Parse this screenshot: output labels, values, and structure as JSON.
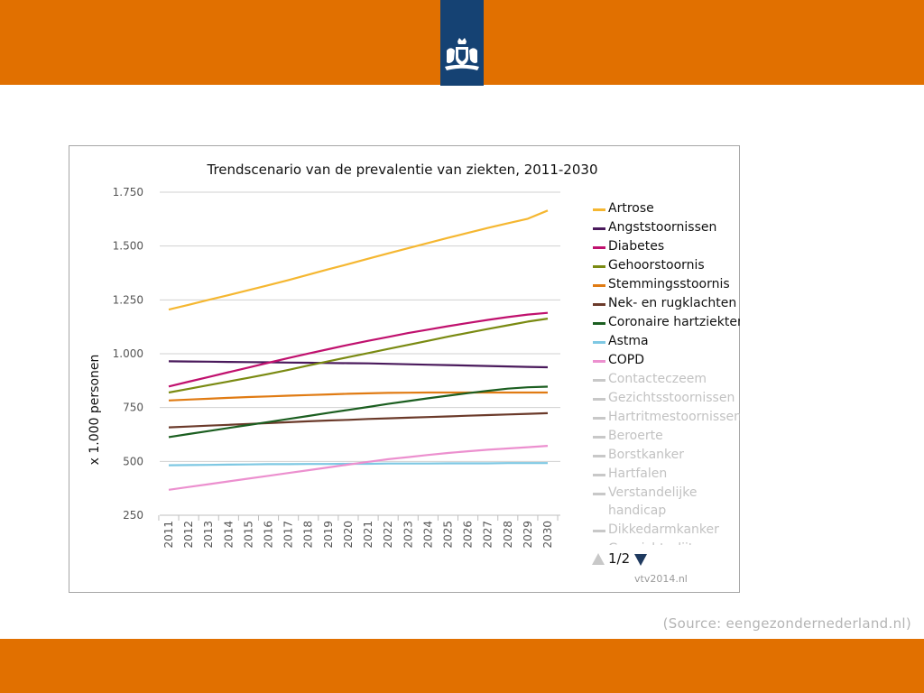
{
  "header": {
    "emblem_icon": "royal-coat-of-arms-icon"
  },
  "source_text": "(Source: eengezondernederland.nl)",
  "legend_nav": {
    "page": "1/2",
    "up_icon": "triangle-up-icon",
    "down_icon": "triangle-down-icon"
  },
  "credit": "vtv2014.nl",
  "colors": {
    "brand_orange": "#e17000",
    "brand_blue": "#154273"
  },
  "chart_data": {
    "type": "line",
    "title": "Trendscenario van de prevalentie van ziekten, 2011-2030",
    "xlabel": "",
    "ylabel": "x 1.000 personen",
    "ylim": [
      250,
      1750
    ],
    "yticks": [
      250,
      500,
      750,
      1000,
      1250,
      1500,
      1750
    ],
    "ytick_labels": [
      "250",
      "500",
      "750",
      "1.000",
      "1.250",
      "1.500",
      "1.750"
    ],
    "x": [
      "2011",
      "2012",
      "2013",
      "2014",
      "2015",
      "2016",
      "2017",
      "2018",
      "2019",
      "2020",
      "2021",
      "2022",
      "2023",
      "2024",
      "2025",
      "2026",
      "2027",
      "2028",
      "2029",
      "2030"
    ],
    "grid": true,
    "legend_position": "right",
    "series": [
      {
        "name": "Artrose",
        "color": "#f5b731",
        "values": [
          1205,
          1227,
          1250,
          1272,
          1295,
          1318,
          1342,
          1367,
          1392,
          1416,
          1441,
          1466,
          1490,
          1514,
          1538,
          1561,
          1584,
          1606,
          1627,
          1665
        ]
      },
      {
        "name": "Angststoornissen",
        "color": "#4a1a5c",
        "values": [
          965,
          964,
          963,
          962,
          961,
          960,
          959,
          958,
          957,
          956,
          955,
          953,
          951,
          949,
          947,
          945,
          943,
          941,
          939,
          937
        ]
      },
      {
        "name": "Diabetes",
        "color": "#c0116e",
        "values": [
          848,
          870,
          892,
          914,
          936,
          958,
          980,
          1001,
          1021,
          1041,
          1060,
          1078,
          1096,
          1112,
          1128,
          1143,
          1157,
          1170,
          1182,
          1190
        ]
      },
      {
        "name": "Gehoorstoornis",
        "color": "#7a8a12",
        "values": [
          820,
          837,
          854,
          871,
          888,
          906,
          925,
          945,
          965,
          984,
          1003,
          1022,
          1041,
          1060,
          1079,
          1097,
          1115,
          1132,
          1149,
          1163
        ]
      },
      {
        "name": "Stemmingsstoornis",
        "color": "#e07b13",
        "values": [
          783,
          787,
          791,
          795,
          799,
          802,
          805,
          808,
          811,
          814,
          816,
          818,
          819,
          820,
          820,
          820,
          820,
          820,
          820,
          820
        ]
      },
      {
        "name": "Nek- en rugklachten",
        "color": "#6b3a2a",
        "values": [
          658,
          662,
          666,
          670,
          674,
          678,
          682,
          686,
          690,
          693,
          697,
          700,
          703,
          706,
          709,
          712,
          715,
          718,
          721,
          724
        ]
      },
      {
        "name": "Coronaire hartziekten",
        "color": "#1b5e20",
        "values": [
          613,
          627,
          641,
          655,
          669,
          683,
          697,
          711,
          725,
          739,
          753,
          767,
          780,
          793,
          805,
          817,
          828,
          838,
          844,
          847
        ]
      },
      {
        "name": "Astma",
        "color": "#7ec8e3",
        "values": [
          482,
          483,
          484,
          485,
          486,
          487,
          487,
          488,
          488,
          489,
          489,
          490,
          490,
          490,
          491,
          491,
          491,
          492,
          492,
          492
        ]
      },
      {
        "name": "COPD",
        "color": "#ec90cf",
        "values": [
          368,
          381,
          394,
          407,
          420,
          433,
          446,
          459,
          472,
          485,
          498,
          510,
          520,
          530,
          539,
          547,
          554,
          560,
          566,
          572
        ]
      },
      {
        "name": "Contacteczeem",
        "color": "#c8c8c8",
        "visible": false
      },
      {
        "name": "Gezichtsstoornissen",
        "color": "#c8c8c8",
        "visible": false
      },
      {
        "name": "Hartritmestoornissen",
        "color": "#c8c8c8",
        "visible": false
      },
      {
        "name": "Beroerte",
        "color": "#c8c8c8",
        "visible": false
      },
      {
        "name": "Borstkanker",
        "color": "#c8c8c8",
        "visible": false
      },
      {
        "name": "Hartfalen",
        "color": "#c8c8c8",
        "visible": false
      },
      {
        "name": "Verstandelijke handicap",
        "color": "#c8c8c8",
        "visible": false
      },
      {
        "name": "Dikkedarmkanker",
        "color": "#c8c8c8",
        "visible": false
      },
      {
        "name": "Gewrichtsslijtage",
        "color": "#c8c8c8",
        "visible": false
      }
    ]
  }
}
